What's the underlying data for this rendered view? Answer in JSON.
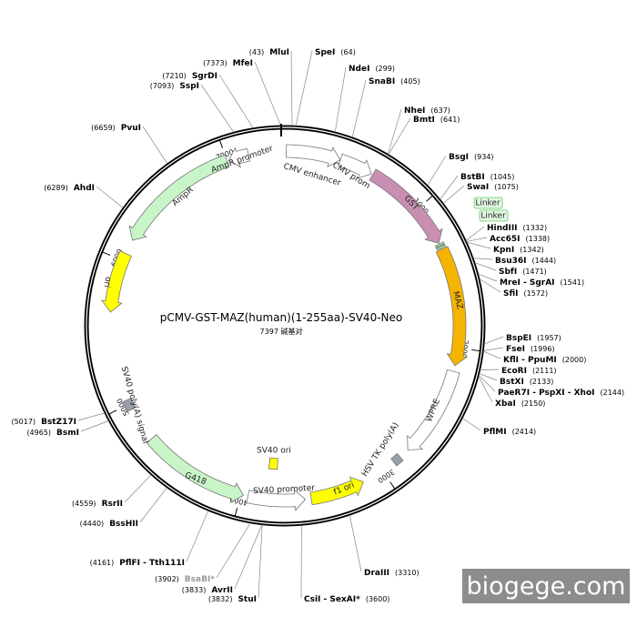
{
  "plasmid": {
    "title": "pCMV-GST-MAZ(human)(1-255aa)-SV40-Neo",
    "size_label": "7397 碱基对",
    "length": 7397,
    "ticks": [
      1000,
      2000,
      3000,
      4000,
      5000,
      6000,
      7000
    ],
    "sites": [
      {
        "name": "MluI",
        "position": 43,
        "position_label": "(43)"
      },
      {
        "name": "SpeI",
        "position": 64,
        "position_label": "(64)"
      },
      {
        "name": "MfeI",
        "position": 7373,
        "position_label": "(7373)"
      },
      {
        "name": "NdeI",
        "position": 299,
        "position_label": "(299)"
      },
      {
        "name": "SgrDI",
        "position": 7210,
        "position_label": "(7210)"
      },
      {
        "name": "SnaBI",
        "position": 405,
        "position_label": "(405)"
      },
      {
        "name": "SspI",
        "position": 7093,
        "position_label": "(7093)"
      },
      {
        "name": "NheI",
        "position": 637,
        "position_label": "(637)"
      },
      {
        "name": "BmtI",
        "position": 641,
        "position_label": "(641)"
      },
      {
        "name": "PvuI",
        "position": 6659,
        "position_label": "(6659)"
      },
      {
        "name": "BsgI",
        "position": 934,
        "position_label": "(934)"
      },
      {
        "name": "BstBI",
        "position": 1045,
        "position_label": "(1045)"
      },
      {
        "name": "SwaI",
        "position": 1075,
        "position_label": "(1075)"
      },
      {
        "name": "AhdI",
        "position": 6289,
        "position_label": "(6289)"
      },
      {
        "name": "HindIII",
        "position": 1332,
        "position_label": "(1332)"
      },
      {
        "name": "Acc65I",
        "position": 1338,
        "position_label": "(1338)"
      },
      {
        "name": "KpnI",
        "position": 1342,
        "position_label": "(1342)"
      },
      {
        "name": "Bsu36I",
        "position": 1444,
        "position_label": "(1444)"
      },
      {
        "name": "SbfI",
        "position": 1471,
        "position_label": "(1471)"
      },
      {
        "name": "MreI - SgrAI",
        "position": 1541,
        "position_label": "(1541)"
      },
      {
        "name": "SfiI",
        "position": 1572,
        "position_label": "(1572)"
      },
      {
        "name": "BspEI",
        "position": 1957,
        "position_label": "(1957)"
      },
      {
        "name": "FseI",
        "position": 1996,
        "position_label": "(1996)"
      },
      {
        "name": "KflI - PpuMI",
        "position": 2000,
        "position_label": "(2000)"
      },
      {
        "name": "EcoRI",
        "position": 2111,
        "position_label": "(2111)"
      },
      {
        "name": "BstXI",
        "position": 2133,
        "position_label": "(2133)"
      },
      {
        "name": "PaeR7I - PspXI - XhoI",
        "position": 2144,
        "position_label": "(2144)"
      },
      {
        "name": "XbaI",
        "position": 2150,
        "position_label": "(2150)"
      },
      {
        "name": "PflMI",
        "position": 2414,
        "position_label": "(2414)"
      },
      {
        "name": "BstZ17I",
        "position": 5017,
        "position_label": "(5017)"
      },
      {
        "name": "BsmI",
        "position": 4965,
        "position_label": "(4965)"
      },
      {
        "name": "RsrII",
        "position": 4559,
        "position_label": "(4559)"
      },
      {
        "name": "BssHII",
        "position": 4440,
        "position_label": "(4440)"
      },
      {
        "name": "PflFI - Tth111I",
        "position": 4161,
        "position_label": "(4161)"
      },
      {
        "name": "BsaBI*",
        "position": 3902,
        "position_label": "(3902)",
        "color": "#999999"
      },
      {
        "name": "AvrII",
        "position": 3833,
        "position_label": "(3833)"
      },
      {
        "name": "StuI",
        "position": 3832,
        "position_label": "(3832)"
      },
      {
        "name": "CsiI - SexAI*",
        "position": 3600,
        "position_label": "(3600)"
      },
      {
        "name": "DraIII",
        "position": 3310,
        "position_label": "(3310)"
      }
    ],
    "features": [
      {
        "name": "CMV enhancer",
        "start": 10,
        "end": 380,
        "direction": 1,
        "color": "#ffffff"
      },
      {
        "name": "CMV prom",
        "start": 380,
        "end": 610,
        "direction": 1,
        "color": "#ffffff"
      },
      {
        "name": "GST",
        "start": 620,
        "end": 1270,
        "direction": 1,
        "color": "#c98fb3"
      },
      {
        "name": "Linker",
        "start": 1276,
        "end": 1290,
        "shape": "box",
        "color": "#9be39b"
      },
      {
        "name": "Linker",
        "start": 1294,
        "end": 1308,
        "shape": "box",
        "color": "#9be39b"
      },
      {
        "name": "MAZ",
        "start": 1315,
        "end": 2120,
        "direction": 1,
        "color": "#f5b400"
      },
      {
        "name": "WPRE",
        "start": 2160,
        "end": 2780,
        "direction": 1,
        "color": "#ffffff"
      },
      {
        "name": "HSV TK poly(A)",
        "start": 2850,
        "end": 2905,
        "shape": "box",
        "color": "#9aa0ab"
      },
      {
        "name": "f1 ori",
        "start": 3150,
        "end": 3520,
        "direction": -1,
        "color": "#ffff00"
      },
      {
        "name": "SV40 promoter",
        "start": 3560,
        "end": 3950,
        "direction": -1,
        "color": "#ffffff"
      },
      {
        "name": "SV40 ori",
        "start": 3760,
        "end": 3830,
        "shape": "box",
        "color": "#ffff00"
      },
      {
        "name": "G418",
        "start": 3980,
        "end": 4720,
        "direction": -1,
        "color": "#c8f5c8"
      },
      {
        "name": "SV40 poly(A) signal",
        "start": 4960,
        "end": 5030,
        "shape": "box",
        "color": "#9aa0ab"
      },
      {
        "name": "ori",
        "start": 5640,
        "end": 6050,
        "direction": -1,
        "color": "#ffff00"
      },
      {
        "name": "AmpR",
        "start": 6150,
        "end": 7000,
        "direction": -1,
        "color": "#c8f5c8"
      },
      {
        "name": "AmpR promoter",
        "start": 7015,
        "end": 7150,
        "direction": -1,
        "color": "#ffffff"
      }
    ],
    "watermark": "biogege.com"
  }
}
